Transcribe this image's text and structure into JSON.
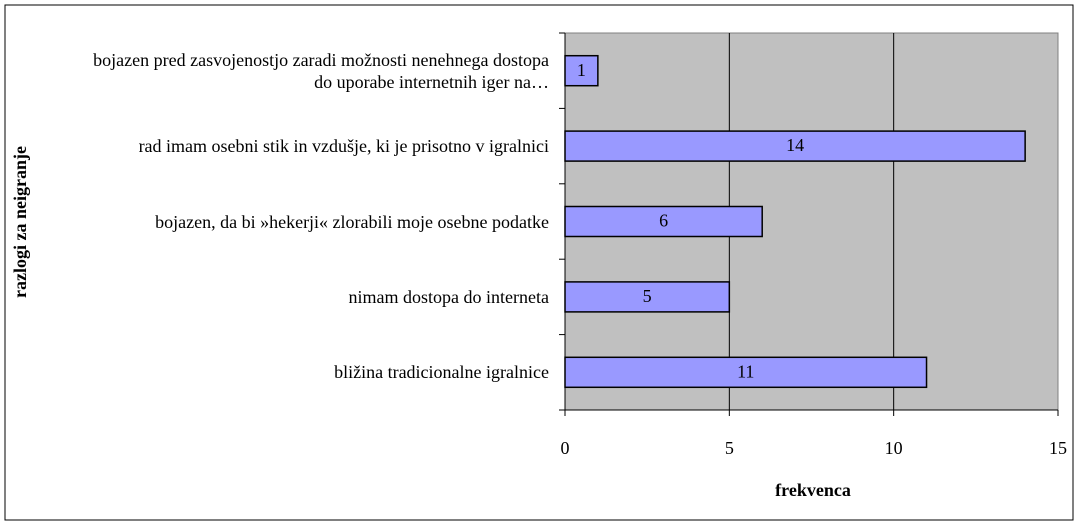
{
  "chart_data": {
    "type": "bar",
    "orientation": "horizontal",
    "xlabel": "frekvenca",
    "ylabel": "razlogi za neigranje",
    "categories": [
      "bojazen pred zasvojenostjo zaradi možnosti nenehnega dostopa do uporabe internetnih iger na…",
      "rad imam osebni stik in vzdušje, ki je prisotno v igralnici",
      "bojazen, da bi »hekerji« zlorabili moje osebne podatke",
      "nimam dostopa do interneta",
      "bližina tradicionalne igralnice"
    ],
    "values": [
      1,
      14,
      6,
      5,
      11
    ],
    "color": "#9999ff",
    "xlim": [
      0,
      15
    ],
    "xticks": [
      0,
      5,
      10,
      15
    ],
    "grid": true
  }
}
